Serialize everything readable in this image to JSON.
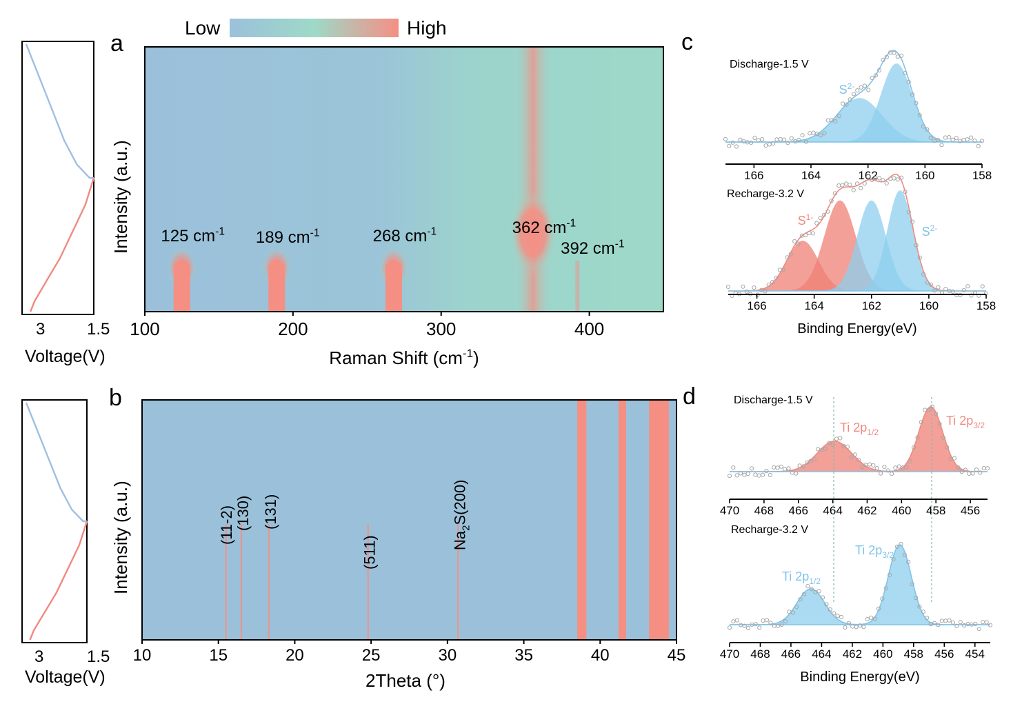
{
  "colors": {
    "low": "#9bc1da",
    "mid": "#9ed9c8",
    "high": "#f58f84",
    "blue_fill": "#8ecfee",
    "blue_line": "#9fbfe3",
    "red_fill": "#ef8076",
    "red_line": "#f08a80",
    "point": "#a6a6a6"
  },
  "colorbar": {
    "low_label": "Low",
    "high_label": "High"
  },
  "panel_labels": {
    "a": "a",
    "b": "b",
    "c": "c",
    "d": "d"
  },
  "chart_data": [
    {
      "id": "a",
      "type": "heatmap",
      "xlabel": "Raman Shift (cm-1)",
      "ylabel": "Intensity (a.u.)",
      "xlim": [
        100,
        450
      ],
      "xticks": [
        100,
        200,
        300,
        400
      ],
      "peaks": [
        {
          "value": 125,
          "label": "125 cm-1",
          "strength": 1.0
        },
        {
          "value": 189,
          "label": "189 cm-1",
          "strength": 1.0
        },
        {
          "value": 268,
          "label": "268 cm-1",
          "strength": 0.95
        },
        {
          "value": 362,
          "label": "362 cm-1",
          "strength": 0.9
        },
        {
          "value": 392,
          "label": "392 cm-1",
          "strength": 0.35
        }
      ]
    },
    {
      "id": "a-voltage",
      "type": "line",
      "xlabel": "Voltage(V)",
      "xticks": [
        "3",
        "1.5"
      ],
      "series": [
        {
          "segment": "discharge",
          "x": [
            3.1,
            2.8,
            2.5,
            2.2,
            1.9,
            1.6,
            1.5
          ],
          "y": [
            0.0,
            0.12,
            0.24,
            0.36,
            0.45,
            0.5,
            0.5
          ]
        },
        {
          "segment": "charge",
          "x": [
            1.5,
            1.7,
            2.0,
            2.3,
            2.6,
            2.9,
            3.0
          ],
          "y": [
            0.5,
            0.6,
            0.7,
            0.8,
            0.88,
            0.96,
            1.0
          ]
        }
      ]
    },
    {
      "id": "b",
      "type": "heatmap",
      "xlabel": "2Theta (°)",
      "ylabel": "Intensity (a.u.)",
      "xlim": [
        10,
        45
      ],
      "xticks": [
        10,
        15,
        20,
        25,
        30,
        35,
        40,
        45
      ],
      "peaks": [
        {
          "value": 15.5,
          "label": "(11-2)"
        },
        {
          "value": 16.5,
          "label": "(130)"
        },
        {
          "value": 18.3,
          "label": "(131)"
        },
        {
          "value": 24.8,
          "label": "(511)"
        },
        {
          "value": 30.7,
          "label": "Na2S(200)"
        }
      ],
      "substrate_bands": [
        [
          38.5,
          39.1
        ],
        [
          41.2,
          41.7
        ],
        [
          43.2,
          44.5
        ]
      ]
    },
    {
      "id": "b-voltage",
      "type": "line",
      "xlabel": "Voltage(V)",
      "xticks": [
        "3",
        "1.5"
      ],
      "series": [
        {
          "segment": "discharge",
          "x": [
            3.1,
            2.8,
            2.5,
            2.2,
            1.9,
            1.6,
            1.5
          ],
          "y": [
            0.0,
            0.12,
            0.24,
            0.36,
            0.45,
            0.5,
            0.5
          ]
        },
        {
          "segment": "charge",
          "x": [
            1.5,
            1.7,
            2.0,
            2.3,
            2.6,
            2.9,
            3.0
          ],
          "y": [
            0.5,
            0.6,
            0.7,
            0.8,
            0.88,
            0.96,
            1.0
          ]
        }
      ]
    },
    {
      "id": "c-top",
      "type": "area",
      "condition": "Discharge-1.5 V",
      "xlim": [
        167,
        158
      ],
      "xticks": [
        166,
        164,
        162,
        160,
        158
      ],
      "peaks": [
        {
          "label": "S2-",
          "center": 162.3,
          "height": 0.56,
          "width": 0.8,
          "color": "blue"
        },
        {
          "label": "",
          "center": 161.0,
          "height": 1.0,
          "width": 0.55,
          "color": "blue"
        }
      ]
    },
    {
      "id": "c-bottom",
      "type": "area",
      "condition": "Recharge-3.2 V",
      "xlabel": "Binding Energy(eV)",
      "xlim": [
        167,
        158
      ],
      "xticks": [
        166,
        164,
        162,
        160,
        158
      ],
      "peaks": [
        {
          "label": "S1-",
          "center": 164.4,
          "height": 0.5,
          "width": 0.55,
          "color": "red"
        },
        {
          "label": "",
          "center": 163.1,
          "height": 0.9,
          "width": 0.55,
          "color": "red"
        },
        {
          "label": "",
          "center": 162.0,
          "height": 0.9,
          "width": 0.5,
          "color": "blue"
        },
        {
          "label": "S2-",
          "center": 161.0,
          "height": 1.0,
          "width": 0.45,
          "color": "blue"
        }
      ]
    },
    {
      "id": "d-top",
      "type": "area",
      "condition": "Discharge-1.5 V",
      "xlim": [
        470,
        455
      ],
      "xticks": [
        470,
        468,
        466,
        464,
        462,
        460,
        458,
        456
      ],
      "peaks": [
        {
          "label": "Ti 2p1/2",
          "center": 463.9,
          "height": 0.47,
          "width": 1.0,
          "color": "red"
        },
        {
          "label": "Ti 2p3/2",
          "center": 458.3,
          "height": 1.0,
          "width": 0.7,
          "color": "red"
        }
      ]
    },
    {
      "id": "d-bottom",
      "type": "area",
      "condition": "Recharge-3.2 V",
      "xlabel": "Binding Energy(eV)",
      "xlim": [
        470,
        453
      ],
      "xticks": [
        470,
        468,
        466,
        464,
        462,
        460,
        458,
        456,
        454
      ],
      "peaks": [
        {
          "label": "Ti 2p1/2",
          "center": 464.7,
          "height": 0.45,
          "width": 0.9,
          "color": "blue"
        },
        {
          "label": "Ti 2p3/2",
          "center": 458.9,
          "height": 1.0,
          "width": 0.75,
          "color": "blue"
        }
      ]
    }
  ]
}
